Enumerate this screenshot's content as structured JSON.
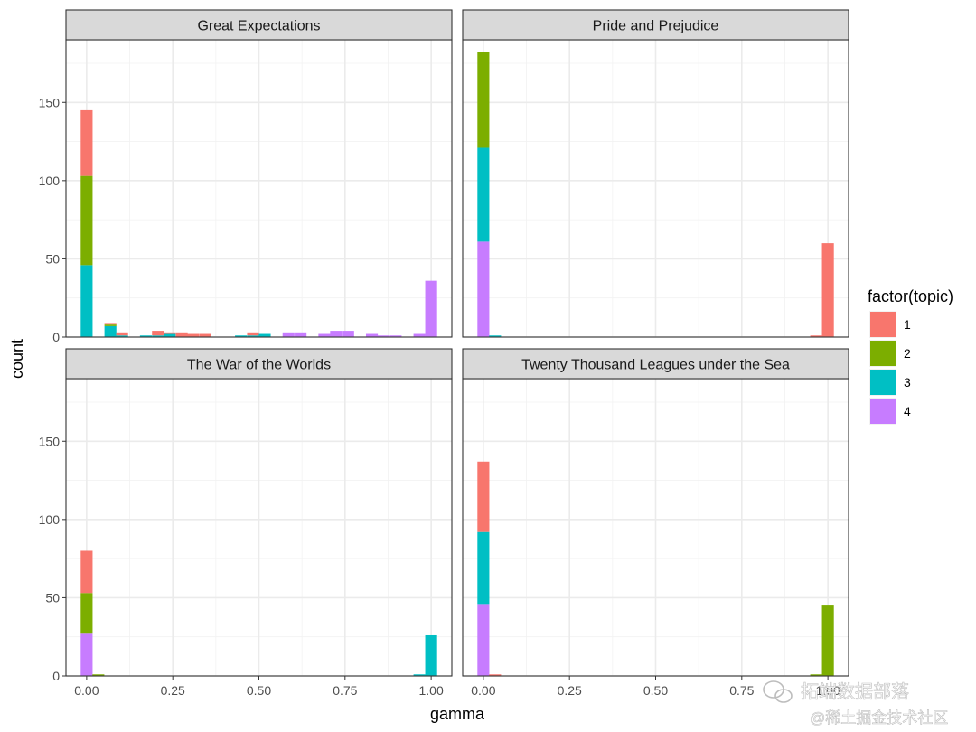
{
  "chart_data": {
    "type": "bar",
    "stacked": true,
    "faceted": true,
    "xlabel": "gamma",
    "ylabel": "count",
    "xlim": [
      -0.06,
      1.06
    ],
    "ylim": [
      0,
      190
    ],
    "x_ticks": [
      0.0,
      0.25,
      0.5,
      0.75,
      1.0
    ],
    "x_tick_labels": [
      "0.00",
      "0.25",
      "0.50",
      "0.75",
      "1.00"
    ],
    "y_ticks": [
      0,
      50,
      100,
      150
    ],
    "y_tick_labels": [
      "0",
      "50",
      "100",
      "150"
    ],
    "grid": true,
    "bin_width": 0.0345,
    "legend": {
      "title": "factor(topic)",
      "position": "right",
      "entries": [
        {
          "label": "1",
          "color": "#F8766D"
        },
        {
          "label": "2",
          "color": "#7CAE00"
        },
        {
          "label": "3",
          "color": "#00BFC4"
        },
        {
          "label": "4",
          "color": "#C77CFF"
        }
      ]
    },
    "stack_order": [
      "1",
      "2",
      "3",
      "4"
    ],
    "facets": [
      {
        "title": "Great Expectations",
        "bins": [
          {
            "x": 0.0,
            "counts": {
              "1": 42,
              "2": 57,
              "3": 46,
              "4": 0
            }
          },
          {
            "x": 0.069,
            "counts": {
              "1": 1,
              "2": 1,
              "3": 7,
              "4": 0
            }
          },
          {
            "x": 0.103,
            "counts": {
              "1": 2,
              "2": 0,
              "3": 1,
              "4": 0
            }
          },
          {
            "x": 0.172,
            "counts": {
              "1": 0,
              "2": 0,
              "3": 1,
              "4": 0
            }
          },
          {
            "x": 0.207,
            "counts": {
              "1": 3,
              "2": 0,
              "3": 1,
              "4": 0
            }
          },
          {
            "x": 0.241,
            "counts": {
              "1": 1,
              "2": 0,
              "3": 2,
              "4": 0
            }
          },
          {
            "x": 0.276,
            "counts": {
              "1": 3,
              "2": 0,
              "3": 0,
              "4": 0
            }
          },
          {
            "x": 0.31,
            "counts": {
              "1": 2,
              "2": 0,
              "3": 0,
              "4": 0
            }
          },
          {
            "x": 0.345,
            "counts": {
              "1": 2,
              "2": 0,
              "3": 0,
              "4": 0
            }
          },
          {
            "x": 0.448,
            "counts": {
              "1": 0,
              "2": 0,
              "3": 1,
              "4": 0
            }
          },
          {
            "x": 0.483,
            "counts": {
              "1": 2,
              "2": 0,
              "3": 1,
              "4": 0
            }
          },
          {
            "x": 0.517,
            "counts": {
              "1": 0,
              "2": 0,
              "3": 2,
              "4": 0
            }
          },
          {
            "x": 0.586,
            "counts": {
              "1": 0,
              "2": 0,
              "3": 0,
              "4": 3
            }
          },
          {
            "x": 0.621,
            "counts": {
              "1": 0,
              "2": 0,
              "3": 0,
              "4": 3
            }
          },
          {
            "x": 0.69,
            "counts": {
              "1": 0,
              "2": 0,
              "3": 0,
              "4": 2
            }
          },
          {
            "x": 0.724,
            "counts": {
              "1": 0,
              "2": 0,
              "3": 0,
              "4": 4
            }
          },
          {
            "x": 0.759,
            "counts": {
              "1": 0,
              "2": 0,
              "3": 0,
              "4": 4
            }
          },
          {
            "x": 0.828,
            "counts": {
              "1": 0,
              "2": 0,
              "3": 0,
              "4": 2
            }
          },
          {
            "x": 0.862,
            "counts": {
              "1": 0,
              "2": 0,
              "3": 0,
              "4": 1
            }
          },
          {
            "x": 0.897,
            "counts": {
              "1": 0,
              "2": 0,
              "3": 0,
              "4": 1
            }
          },
          {
            "x": 0.966,
            "counts": {
              "1": 0,
              "2": 0,
              "3": 0,
              "4": 2
            }
          },
          {
            "x": 1.0,
            "counts": {
              "1": 0,
              "2": 0,
              "3": 0,
              "4": 36
            }
          }
        ]
      },
      {
        "title": "Pride and Prejudice",
        "bins": [
          {
            "x": 0.0,
            "counts": {
              "1": 0,
              "2": 61,
              "3": 60,
              "4": 61
            }
          },
          {
            "x": 0.034,
            "counts": {
              "1": 0,
              "2": 0,
              "3": 1,
              "4": 0
            }
          },
          {
            "x": 0.966,
            "counts": {
              "1": 1,
              "2": 0,
              "3": 0,
              "4": 0
            }
          },
          {
            "x": 1.0,
            "counts": {
              "1": 60,
              "2": 0,
              "3": 0,
              "4": 0
            }
          }
        ]
      },
      {
        "title": "The War of the Worlds",
        "bins": [
          {
            "x": 0.0,
            "counts": {
              "1": 27,
              "2": 26,
              "3": 0,
              "4": 27
            }
          },
          {
            "x": 0.034,
            "counts": {
              "1": 0,
              "2": 1,
              "3": 0,
              "4": 0
            }
          },
          {
            "x": 0.966,
            "counts": {
              "1": 0,
              "2": 0,
              "3": 1,
              "4": 0
            }
          },
          {
            "x": 1.0,
            "counts": {
              "1": 0,
              "2": 0,
              "3": 26,
              "4": 0
            }
          }
        ]
      },
      {
        "title": "Twenty Thousand Leagues under the Sea",
        "bins": [
          {
            "x": 0.0,
            "counts": {
              "1": 45,
              "2": 0,
              "3": 46,
              "4": 46
            }
          },
          {
            "x": 0.034,
            "counts": {
              "1": 1,
              "2": 0,
              "3": 0,
              "4": 0
            }
          },
          {
            "x": 0.966,
            "counts": {
              "1": 0,
              "2": 1,
              "3": 0,
              "4": 0
            }
          },
          {
            "x": 1.0,
            "counts": {
              "1": 0,
              "2": 45,
              "3": 0,
              "4": 0
            }
          }
        ]
      }
    ]
  },
  "watermark": {
    "line1": "拓端数据部落",
    "line2": "@稀土掘金技术社区",
    "icon": "wechat-icon"
  }
}
